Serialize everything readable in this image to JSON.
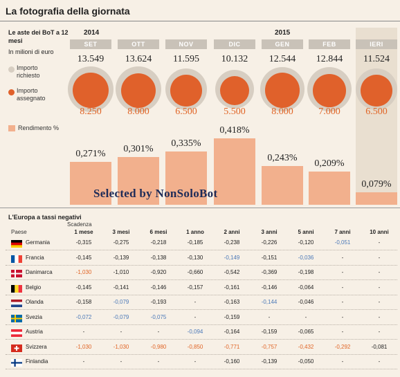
{
  "title": "La fotografia della giornata",
  "subtitle": "Le aste dei BoT a 12 mesi",
  "unit": "In milioni di euro",
  "years": [
    "2014",
    "2015"
  ],
  "legend": {
    "requested": "Importo richiesto",
    "assigned": "Importo assegnato",
    "yield": "Rendimento %"
  },
  "colors": {
    "requested": "#d7cec2",
    "assigned": "#e0612b",
    "yield_bar": "#f2b08d",
    "negative_orange": "#e06425",
    "negative_blue": "#4a78b8"
  },
  "chart_data": [
    {
      "type": "bubble",
      "title": "Le aste dei BoT a 12 mesi",
      "unit": "In milioni di euro",
      "categories": [
        "SET",
        "OTT",
        "NOV",
        "DIC",
        "GEN",
        "FEB",
        "IERI"
      ],
      "series": [
        {
          "name": "Importo richiesto",
          "values": [
            13.549,
            13.624,
            11.595,
            10.132,
            12.544,
            12.844,
            11.524
          ],
          "labels": [
            "13.549",
            "13.624",
            "11.595",
            "10.132",
            "12.544",
            "12.844",
            "11.524"
          ]
        },
        {
          "name": "Importo assegnato",
          "values": [
            8.25,
            8.0,
            6.5,
            5.5,
            8.0,
            7.0,
            6.5
          ],
          "labels": [
            "8.250",
            "8.000",
            "6.500",
            "5.500",
            "8.000",
            "7.000",
            "6.500"
          ]
        }
      ]
    },
    {
      "type": "bar",
      "title": "Rendimento %",
      "categories": [
        "SET",
        "OTT",
        "NOV",
        "DIC",
        "GEN",
        "FEB",
        "IERI"
      ],
      "values": [
        0.271,
        0.301,
        0.335,
        0.418,
        0.243,
        0.209,
        0.079
      ],
      "labels": [
        "0,271%",
        "0,301%",
        "0,335%",
        "0,418%",
        "0,243%",
        "0,209%",
        "0,079%"
      ]
    },
    {
      "type": "table",
      "title": "L'Europa a tassi negativi",
      "col_header": "Scadenza",
      "row_header": "Paese",
      "columns": [
        "1 mese",
        "3 mesi",
        "6 mesi",
        "1 anno",
        "2 anni",
        "3 anni",
        "5 anni",
        "7 anni",
        "10 anni"
      ],
      "rows": [
        {
          "country": "Germania",
          "flag": "de",
          "values": [
            "-0,315",
            "-0,275",
            "-0,218",
            "-0,185",
            "-0,238",
            "-0,226",
            "-0,120",
            "-0,051",
            "-"
          ],
          "hl": [
            "",
            "",
            "",
            "",
            "",
            "",
            "",
            "b",
            ""
          ]
        },
        {
          "country": "Francia",
          "flag": "fr",
          "values": [
            "-0,145",
            "-0,139",
            "-0,138",
            "-0,130",
            "-0,149",
            "-0,151",
            "-0,036",
            "-",
            "-"
          ],
          "hl": [
            "",
            "",
            "",
            "",
            "b",
            "",
            "b",
            "",
            ""
          ]
        },
        {
          "country": "Danimarca",
          "flag": "dk",
          "values": [
            "-1,030",
            "-1,010",
            "-0,920",
            "-0,660",
            "-0,542",
            "-0,369",
            "-0,198",
            "-",
            "-"
          ],
          "hl": [
            "o",
            "",
            "",
            "",
            "",
            "",
            "",
            "",
            ""
          ]
        },
        {
          "country": "Belgio",
          "flag": "be",
          "values": [
            "-0,145",
            "-0,141",
            "-0,146",
            "-0,157",
            "-0,161",
            "-0,146",
            "-0,064",
            "-",
            "-"
          ],
          "hl": [
            "",
            "",
            "",
            "",
            "",
            "",
            "",
            "",
            ""
          ]
        },
        {
          "country": "Olanda",
          "flag": "nl",
          "values": [
            "-0,158",
            "-0,079",
            "-0,193",
            "-",
            "-0,163",
            "-0,144",
            "-0,046",
            "-",
            "-"
          ],
          "hl": [
            "",
            "b",
            "",
            "",
            "",
            "b",
            "",
            "",
            ""
          ]
        },
        {
          "country": "Svezia",
          "flag": "se",
          "values": [
            "-0,072",
            "-0,079",
            "-0,075",
            "-",
            "-0,159",
            "-",
            "-",
            "-",
            "-"
          ],
          "hl": [
            "b",
            "b",
            "b",
            "",
            "",
            "",
            "",
            "",
            ""
          ]
        },
        {
          "country": "Austria",
          "flag": "at",
          "values": [
            "-",
            "-",
            "-",
            "-0,094",
            "-0,164",
            "-0,159",
            "-0,065",
            "-",
            "-"
          ],
          "hl": [
            "",
            "",
            "",
            "b",
            "",
            "",
            "",
            "",
            ""
          ]
        },
        {
          "country": "Svizzera",
          "flag": "ch",
          "values": [
            "-1,030",
            "-1,030",
            "-0,980",
            "-0,850",
            "-0,771",
            "-0,757",
            "-0,432",
            "-0,292",
            "-0,081"
          ],
          "hl": [
            "o",
            "o",
            "o",
            "o",
            "o",
            "o",
            "o",
            "o",
            ""
          ]
        },
        {
          "country": "Finlandia",
          "flag": "fi",
          "values": [
            "-",
            "-",
            "-",
            "-",
            "-0,160",
            "-0,139",
            "-0,050",
            "-",
            "-"
          ],
          "hl": [
            "",
            "",
            "",
            "",
            "",
            "",
            "",
            "",
            ""
          ]
        }
      ]
    }
  ],
  "watermark": "Selected  by NonSoloBot"
}
